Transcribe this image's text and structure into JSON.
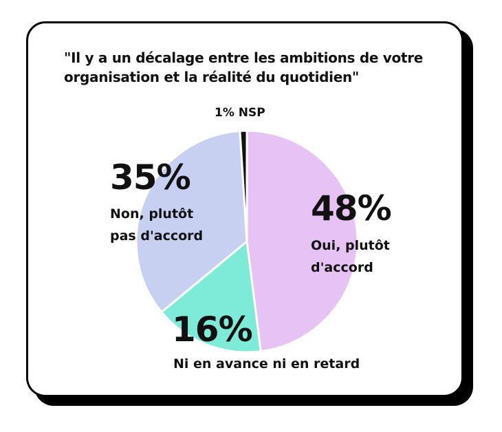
{
  "chart_data": {
    "type": "pie",
    "title": "\"Il y a un décalage entre les ambitions de votre organisation et la réalité du quotidien\"",
    "slices": [
      {
        "label": "Oui, plutôt d'accord",
        "value": 48,
        "value_label": "48%",
        "color": "#e7c2f4"
      },
      {
        "label": "Ni en avance ni en retard",
        "value": 16,
        "value_label": "16%",
        "color": "#7eebd8"
      },
      {
        "label": "Non, plutôt pas d'accord",
        "value": 35,
        "value_label": "35%",
        "color": "#c8d0f2"
      },
      {
        "label": "NSP",
        "value": 1,
        "value_label": "1%",
        "color": "#111111"
      }
    ],
    "nsp_text": "1% NSP",
    "label_lines": {
      "oui": [
        "Oui, plutôt",
        "d'accord"
      ],
      "ni": [
        "Ni en avance ni en retard"
      ],
      "non": [
        "Non, plutôt",
        "pas d'accord"
      ]
    }
  }
}
